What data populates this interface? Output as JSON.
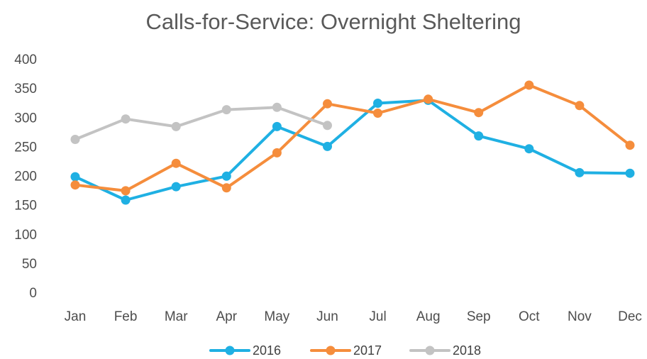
{
  "chart_data": {
    "type": "line",
    "title": "Calls-for-Service: Overnight Sheltering",
    "xlabel": "",
    "ylabel": "",
    "categories": [
      "Jan",
      "Feb",
      "Mar",
      "Apr",
      "May",
      "Jun",
      "Jul",
      "Aug",
      "Sep",
      "Oct",
      "Nov",
      "Dec"
    ],
    "ylim": [
      0,
      400
    ],
    "yticks": [
      0,
      50,
      100,
      150,
      200,
      250,
      300,
      350,
      400
    ],
    "grid": false,
    "legend_position": "bottom",
    "series": [
      {
        "name": "2016",
        "color": "#1fb0e3",
        "values": [
          198,
          158,
          181,
          199,
          284,
          250,
          324,
          329,
          268,
          246,
          205,
          204
        ]
      },
      {
        "name": "2017",
        "color": "#f58d3c",
        "values": [
          184,
          174,
          221,
          179,
          239,
          323,
          307,
          331,
          308,
          355,
          320,
          252
        ]
      },
      {
        "name": "2018",
        "color": "#c3c3c3",
        "values": [
          262,
          297,
          284,
          313,
          317,
          286,
          null,
          null,
          null,
          null,
          null,
          null
        ]
      }
    ]
  }
}
